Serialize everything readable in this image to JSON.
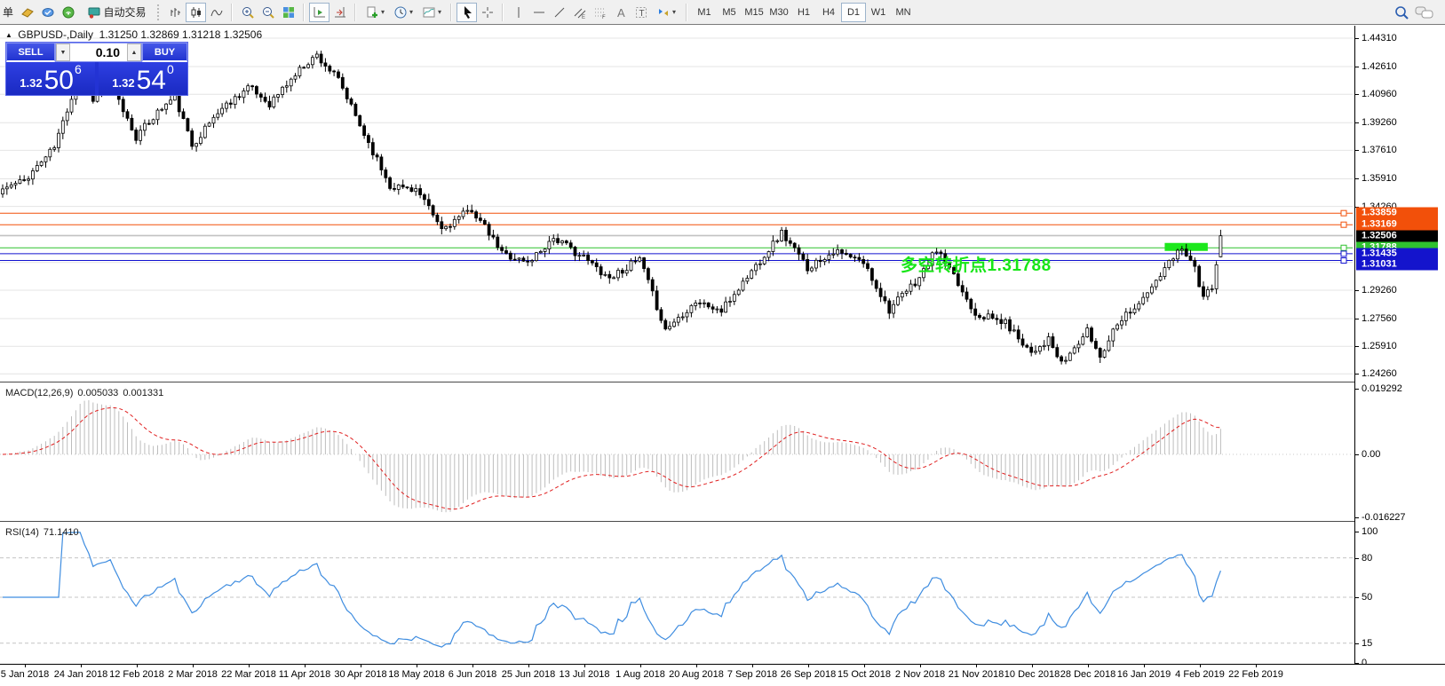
{
  "glyphs": {
    "dropdown": "▾",
    "collapse": "▲",
    "spin_up": "▲",
    "spin_down": "▼"
  },
  "toolbar": {
    "left_fragment": "单",
    "autotrade_label": "自动交易",
    "timeframes": [
      "M1",
      "M5",
      "M15",
      "M30",
      "H1",
      "H4",
      "D1",
      "W1",
      "MN"
    ],
    "active_timeframe": "D1"
  },
  "header": {
    "title": "GBPUSD-,Daily",
    "ohlc": "1.31250 1.32869 1.31218 1.32506"
  },
  "trade_panel": {
    "sell_label": "SELL",
    "buy_label": "BUY",
    "volume": "0.10",
    "sell_prefix": "1.32",
    "sell_big": "50",
    "sell_sup": "6",
    "buy_prefix": "1.32",
    "buy_big": "54",
    "buy_sup": "0"
  },
  "chart_data": [
    {
      "type": "candlestick",
      "symbol": "GBPUSD-",
      "timeframe": "Daily",
      "current": {
        "open": 1.3125,
        "high": 1.32869,
        "low": 1.31218,
        "close": 1.32506
      },
      "num_candles": 284,
      "candle_spacing": 4.846,
      "price_top": 1.4505,
      "price_bottom": 1.238,
      "y_ticks": [
        "1.44310",
        "1.42610",
        "1.40960",
        "1.39260",
        "1.37610",
        "1.35910",
        "1.34260",
        "1.29260",
        "1.27560",
        "1.25910",
        "1.24260"
      ],
      "hidden_grid_ticks": [
        1.3256,
        1.3091
      ],
      "x_labels": [
        "5 Jan 2018",
        "24 Jan 2018",
        "12 Feb 2018",
        "2 Mar 2018",
        "22 Mar 2018",
        "11 Apr 2018",
        "30 Apr 2018",
        "18 May 2018",
        "6 Jun 2018",
        "25 Jun 2018",
        "13 Jul 2018",
        "1 Aug 2018",
        "20 Aug 2018",
        "7 Sep 2018",
        "26 Sep 2018",
        "15 Oct 2018",
        "2 Nov 2018",
        "21 Nov 2018",
        "10 Dec 2018",
        "28 Dec 2018",
        "16 Jan 2019",
        "4 Feb 2019",
        "22 Feb 2019"
      ],
      "h_lines": [
        {
          "price": 1.31788,
          "label": "1.31788",
          "color": "#2fc22f",
          "label_bg": "#2fc22f",
          "z": 1
        },
        {
          "price": 1.31031,
          "label": "1.31031",
          "color": "#1212cf",
          "label_bg": "#1414cc",
          "z": 3,
          "dy": 4
        },
        {
          "price": 1.31435,
          "label": "1.31435",
          "color": "#1212cf",
          "label_bg": "#1414cc",
          "z": 3
        },
        {
          "price": 1.33859,
          "label": "1.33859",
          "color": "#f2500a",
          "label_bg": "#f2500a",
          "z": 2
        },
        {
          "price": 1.33169,
          "label": "1.33169",
          "color": "#f2500a",
          "label_bg": "#f2500a",
          "z": 2
        },
        {
          "price": 1.32506,
          "label": "1.32506",
          "color": "#b2b2b2",
          "label_bg": "#000000",
          "z": 5,
          "role": "bid"
        }
      ],
      "trend_segment": {
        "price": 1.31788,
        "idx_start": 270,
        "idx_end": 280,
        "color": "#1ce81c",
        "thickness": 9
      },
      "annotation": {
        "text": "多空转折点1.31788",
        "color": "#17e617"
      },
      "close_path": [
        [
          0,
          1.353
        ],
        [
          5,
          1.358
        ],
        [
          12,
          1.378
        ],
        [
          18,
          1.423
        ],
        [
          21,
          1.407
        ],
        [
          25,
          1.416
        ],
        [
          31,
          1.384
        ],
        [
          36,
          1.399
        ],
        [
          40,
          1.408
        ],
        [
          44,
          1.379
        ],
        [
          50,
          1.399
        ],
        [
          57,
          1.414
        ],
        [
          62,
          1.404
        ],
        [
          70,
          1.427
        ],
        [
          73,
          1.433
        ],
        [
          78,
          1.418
        ],
        [
          83,
          1.391
        ],
        [
          90,
          1.355
        ],
        [
          96,
          1.353
        ],
        [
          102,
          1.329
        ],
        [
          109,
          1.341
        ],
        [
          116,
          1.315
        ],
        [
          122,
          1.309
        ],
        [
          128,
          1.324
        ],
        [
          135,
          1.312
        ],
        [
          141,
          1.3
        ],
        [
          148,
          1.311
        ],
        [
          154,
          1.269
        ],
        [
          161,
          1.286
        ],
        [
          167,
          1.28
        ],
        [
          174,
          1.304
        ],
        [
          181,
          1.327
        ],
        [
          187,
          1.306
        ],
        [
          193,
          1.316
        ],
        [
          200,
          1.309
        ],
        [
          206,
          1.281
        ],
        [
          213,
          1.3
        ],
        [
          217,
          1.317
        ],
        [
          226,
          1.279
        ],
        [
          233,
          1.273
        ],
        [
          239,
          1.256
        ],
        [
          243,
          1.263
        ],
        [
          246,
          1.248
        ],
        [
          252,
          1.268
        ],
        [
          255,
          1.253
        ],
        [
          259,
          1.274
        ],
        [
          265,
          1.287
        ],
        [
          272,
          1.312
        ],
        [
          274,
          1.319
        ],
        [
          277,
          1.306
        ],
        [
          279,
          1.287
        ],
        [
          281,
          1.295
        ],
        [
          282,
          1.306
        ],
        [
          283,
          1.32506
        ]
      ],
      "bull_color": "#ffffff",
      "bear_color": "#000000",
      "outline_color": "#000000",
      "grid_color": "#e4e4e4"
    },
    {
      "type": "macd",
      "label": "MACD(12,26,9)",
      "value_main": "0.005033",
      "value_signal": "0.001331",
      "params": [
        12,
        26,
        9
      ],
      "y_ticks": [
        "0.019292",
        "0.00",
        "-0.016227"
      ],
      "histogram_color": "#bdbdbd",
      "signal_color": "#e01f1f",
      "signal_style": "dashed"
    },
    {
      "type": "rsi",
      "label": "RSI(14)",
      "value": "71.1410",
      "period": 14,
      "y_ticks": [
        100,
        80,
        50,
        15,
        0
      ],
      "levels": [
        80,
        50,
        15
      ],
      "line_color": "#3f8de0",
      "range": [
        0,
        100
      ]
    }
  ]
}
